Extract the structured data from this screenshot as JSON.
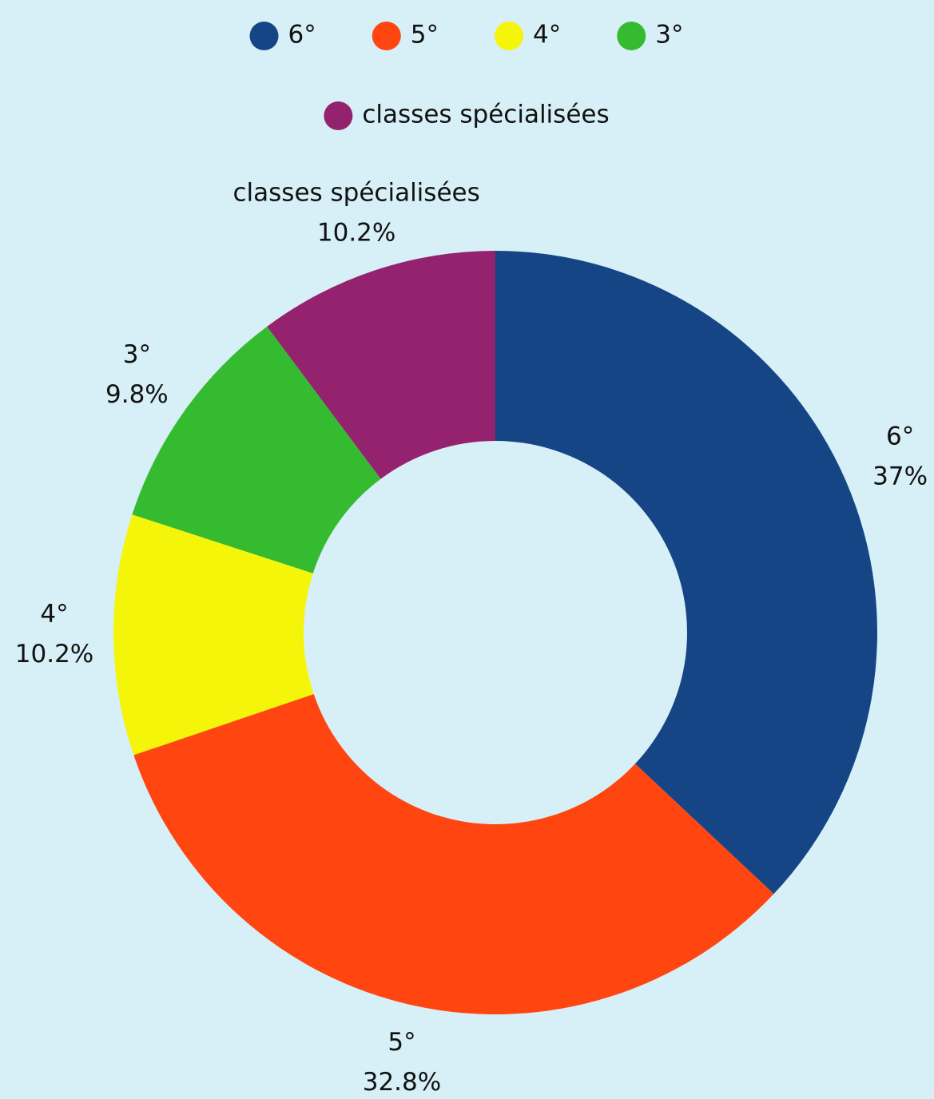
{
  "chart_data": {
    "type": "pie",
    "categories": [
      "6°",
      "5°",
      "4°",
      "3°",
      "classes spécialisées"
    ],
    "values": [
      37,
      32.8,
      10.2,
      9.8,
      10.2
    ],
    "value_labels": [
      "37%",
      "32.8%",
      "10.2%",
      "9.8%",
      "10.2%"
    ],
    "colors": [
      "#154584",
      "#ff4510",
      "#f5f50a",
      "#35bb30",
      "#94226e"
    ],
    "donut": true
  }
}
